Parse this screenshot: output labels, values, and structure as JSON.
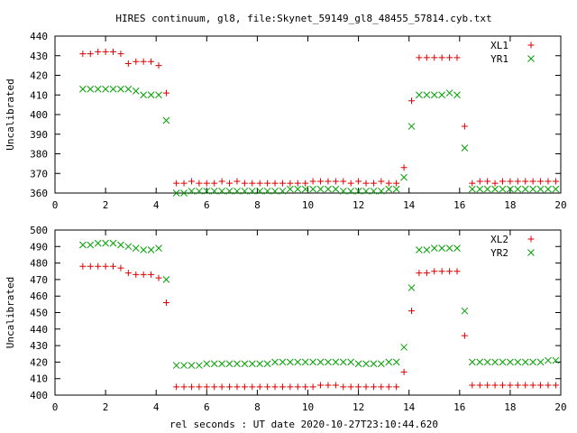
{
  "title": "HIRES continuum, gl8, file:Skynet_59149_gl8_48455_57814.cyb.txt",
  "xlabel": "rel seconds : UT date 2020-10-27T23:10:44.620",
  "colors": {
    "red": "#dd0000",
    "green": "#00a000"
  },
  "chart_data": [
    {
      "type": "scatter",
      "ylabel": "Uncalibrated",
      "xlim": [
        0,
        20
      ],
      "ylim": [
        360,
        440
      ],
      "xticks": [
        0,
        2,
        4,
        6,
        8,
        10,
        12,
        14,
        16,
        18,
        20
      ],
      "yticks": [
        360,
        370,
        380,
        390,
        400,
        410,
        420,
        430,
        440
      ],
      "legend_position": "top-right",
      "series": [
        {
          "name": "XL1",
          "marker": "plus",
          "color": "#dd0000",
          "x": [
            1.1,
            1.4,
            1.7,
            2.0,
            2.3,
            2.6,
            2.9,
            3.2,
            3.5,
            3.8,
            4.1,
            4.4,
            4.8,
            5.1,
            5.4,
            5.7,
            6.0,
            6.3,
            6.6,
            6.9,
            7.2,
            7.5,
            7.8,
            8.1,
            8.4,
            8.7,
            9.0,
            9.3,
            9.6,
            9.9,
            10.2,
            10.5,
            10.8,
            11.1,
            11.4,
            11.7,
            12.0,
            12.3,
            12.6,
            12.9,
            13.2,
            13.5,
            13.8,
            14.1,
            14.4,
            14.7,
            15.0,
            15.3,
            15.6,
            15.9,
            16.2,
            16.5,
            16.8,
            17.1,
            17.4,
            17.7,
            18.0,
            18.3,
            18.6,
            18.9,
            19.2,
            19.5,
            19.8
          ],
          "y": [
            431,
            431,
            432,
            432,
            432,
            431,
            426,
            427,
            427,
            427,
            425,
            411,
            365,
            365,
            366,
            365,
            365,
            365,
            366,
            365,
            366,
            365,
            365,
            365,
            365,
            365,
            365,
            365,
            365,
            365,
            366,
            366,
            366,
            366,
            366,
            365,
            366,
            365,
            365,
            366,
            365,
            365,
            373,
            407,
            429,
            429,
            429,
            429,
            429,
            429,
            394,
            365,
            366,
            366,
            365,
            366,
            366,
            366,
            366,
            366,
            366,
            366,
            366
          ]
        },
        {
          "name": "YR1",
          "marker": "cross",
          "color": "#00a000",
          "x": [
            1.1,
            1.4,
            1.7,
            2.0,
            2.3,
            2.6,
            2.9,
            3.2,
            3.5,
            3.8,
            4.1,
            4.4,
            4.8,
            5.1,
            5.4,
            5.7,
            6.0,
            6.3,
            6.6,
            6.9,
            7.2,
            7.5,
            7.8,
            8.1,
            8.4,
            8.7,
            9.0,
            9.3,
            9.6,
            9.9,
            10.2,
            10.5,
            10.8,
            11.1,
            11.4,
            11.7,
            12.0,
            12.3,
            12.6,
            12.9,
            13.2,
            13.5,
            13.8,
            14.1,
            14.4,
            14.7,
            15.0,
            15.3,
            15.6,
            15.9,
            16.2,
            16.5,
            16.8,
            17.1,
            17.4,
            17.7,
            18.0,
            18.3,
            18.6,
            18.9,
            19.2,
            19.5,
            19.8
          ],
          "y": [
            413,
            413,
            413,
            413,
            413,
            413,
            413,
            412,
            410,
            410,
            410,
            397,
            360,
            360,
            361,
            361,
            361,
            361,
            361,
            361,
            361,
            361,
            361,
            361,
            361,
            361,
            361,
            362,
            362,
            362,
            362,
            362,
            362,
            362,
            361,
            361,
            361,
            361,
            361,
            361,
            362,
            362,
            368,
            394,
            410,
            410,
            410,
            410,
            411,
            410,
            383,
            362,
            362,
            362,
            362,
            362,
            362,
            362,
            362,
            362,
            362,
            362,
            362
          ]
        }
      ]
    },
    {
      "type": "scatter",
      "ylabel": "Uncalibrated",
      "xlim": [
        0,
        20
      ],
      "ylim": [
        400,
        500
      ],
      "xticks": [
        0,
        2,
        4,
        6,
        8,
        10,
        12,
        14,
        16,
        18,
        20
      ],
      "yticks": [
        400,
        410,
        420,
        430,
        440,
        450,
        460,
        470,
        480,
        490,
        500
      ],
      "legend_position": "top-right",
      "series": [
        {
          "name": "XL2",
          "marker": "plus",
          "color": "#dd0000",
          "x": [
            1.1,
            1.4,
            1.7,
            2.0,
            2.3,
            2.6,
            2.9,
            3.2,
            3.5,
            3.8,
            4.1,
            4.4,
            4.8,
            5.1,
            5.4,
            5.7,
            6.0,
            6.3,
            6.6,
            6.9,
            7.2,
            7.5,
            7.8,
            8.1,
            8.4,
            8.7,
            9.0,
            9.3,
            9.6,
            9.9,
            10.2,
            10.5,
            10.8,
            11.1,
            11.4,
            11.7,
            12.0,
            12.3,
            12.6,
            12.9,
            13.2,
            13.5,
            13.8,
            14.1,
            14.4,
            14.7,
            15.0,
            15.3,
            15.6,
            15.9,
            16.2,
            16.5,
            16.8,
            17.1,
            17.4,
            17.7,
            18.0,
            18.3,
            18.6,
            18.9,
            19.2,
            19.5,
            19.8
          ],
          "y": [
            478,
            478,
            478,
            478,
            478,
            477,
            474,
            473,
            473,
            473,
            471,
            456,
            405,
            405,
            405,
            405,
            405,
            405,
            405,
            405,
            405,
            405,
            405,
            405,
            405,
            405,
            405,
            405,
            405,
            405,
            405,
            406,
            406,
            406,
            405,
            405,
            405,
            405,
            405,
            405,
            405,
            405,
            414,
            451,
            474,
            474,
            475,
            475,
            475,
            475,
            436,
            406,
            406,
            406,
            406,
            406,
            406,
            406,
            406,
            406,
            406,
            406,
            406
          ]
        },
        {
          "name": "YR2",
          "marker": "cross",
          "color": "#00a000",
          "x": [
            1.1,
            1.4,
            1.7,
            2.0,
            2.3,
            2.6,
            2.9,
            3.2,
            3.5,
            3.8,
            4.1,
            4.4,
            4.8,
            5.1,
            5.4,
            5.7,
            6.0,
            6.3,
            6.6,
            6.9,
            7.2,
            7.5,
            7.8,
            8.1,
            8.4,
            8.7,
            9.0,
            9.3,
            9.6,
            9.9,
            10.2,
            10.5,
            10.8,
            11.1,
            11.4,
            11.7,
            12.0,
            12.3,
            12.6,
            12.9,
            13.2,
            13.5,
            13.8,
            14.1,
            14.4,
            14.7,
            15.0,
            15.3,
            15.6,
            15.9,
            16.2,
            16.5,
            16.8,
            17.1,
            17.4,
            17.7,
            18.0,
            18.3,
            18.6,
            18.9,
            19.2,
            19.5,
            19.8
          ],
          "y": [
            491,
            491,
            492,
            492,
            492,
            491,
            490,
            489,
            488,
            488,
            489,
            470,
            418,
            418,
            418,
            418,
            419,
            419,
            419,
            419,
            419,
            419,
            419,
            419,
            419,
            420,
            420,
            420,
            420,
            420,
            420,
            420,
            420,
            420,
            420,
            420,
            419,
            419,
            419,
            419,
            420,
            420,
            429,
            465,
            488,
            488,
            489,
            489,
            489,
            489,
            451,
            420,
            420,
            420,
            420,
            420,
            420,
            420,
            420,
            420,
            420,
            421,
            421
          ]
        }
      ]
    }
  ]
}
